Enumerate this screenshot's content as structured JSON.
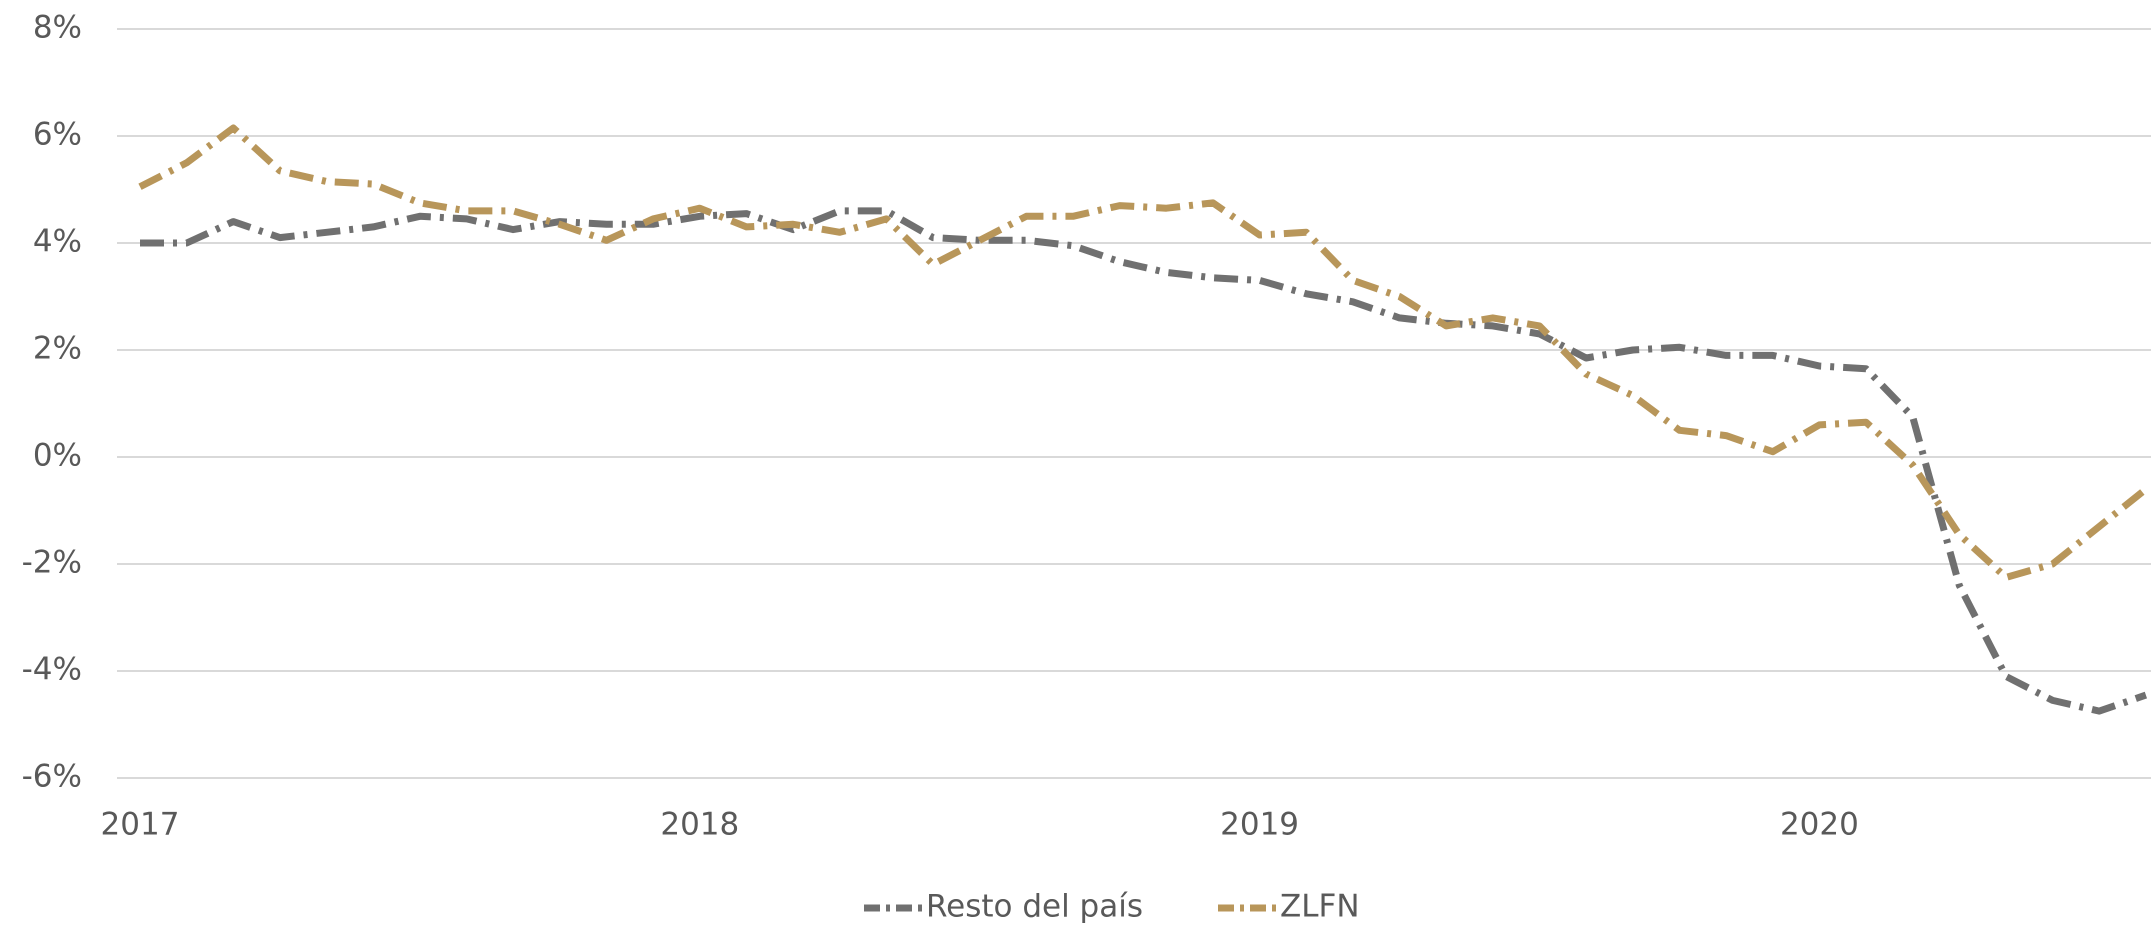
{
  "chart_data": {
    "type": "line",
    "categories": [
      "2017",
      null,
      null,
      null,
      null,
      null,
      null,
      null,
      null,
      null,
      null,
      null,
      "2018",
      null,
      null,
      null,
      null,
      null,
      null,
      null,
      null,
      null,
      null,
      null,
      "2019",
      null,
      null,
      null,
      null,
      null,
      null,
      null,
      null,
      null,
      null,
      null,
      "2020",
      null,
      null,
      null,
      null,
      null,
      null,
      null
    ],
    "series": [
      {
        "name": "Resto del país",
        "color": "#707070",
        "values": [
          4.0,
          4.0,
          4.4,
          4.1,
          4.2,
          4.3,
          4.5,
          4.45,
          4.25,
          4.4,
          4.35,
          4.35,
          4.5,
          4.55,
          4.25,
          4.6,
          4.6,
          4.1,
          4.05,
          4.05,
          3.95,
          3.65,
          3.45,
          3.35,
          3.3,
          3.05,
          2.9,
          2.6,
          2.5,
          2.45,
          2.3,
          1.85,
          2.0,
          2.05,
          1.9,
          1.9,
          1.7,
          1.65,
          0.75,
          -2.4,
          -4.1,
          -4.55,
          -4.75,
          -4.45
        ]
      },
      {
        "name": "ZLFN",
        "color": "#b8965a",
        "values": [
          5.05,
          5.5,
          6.15,
          5.35,
          5.15,
          5.1,
          4.75,
          4.6,
          4.6,
          4.35,
          4.05,
          4.45,
          4.65,
          4.3,
          4.35,
          4.2,
          4.45,
          3.6,
          4.05,
          4.5,
          4.5,
          4.7,
          4.65,
          4.75,
          4.15,
          4.2,
          3.3,
          3.0,
          2.45,
          2.6,
          2.45,
          1.55,
          1.15,
          0.5,
          0.4,
          0.1,
          0.6,
          0.65,
          -0.15,
          -1.45,
          -2.25,
          -2.0,
          -1.3,
          -0.6
        ]
      }
    ],
    "ylim": [
      -6,
      8
    ],
    "yticks": [
      {
        "value": -6,
        "label": "-6%"
      },
      {
        "value": -4,
        "label": "-4%"
      },
      {
        "value": -2,
        "label": "-2%"
      },
      {
        "value": 0,
        "label": "0%"
      },
      {
        "value": 2,
        "label": "2%"
      },
      {
        "value": 4,
        "label": "4%"
      },
      {
        "value": 6,
        "label": "6%"
      },
      {
        "value": 8,
        "label": "8%"
      }
    ],
    "grid": true,
    "legend": "bottom"
  }
}
